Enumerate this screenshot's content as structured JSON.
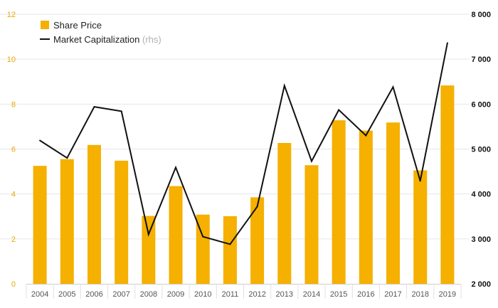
{
  "chart_data": {
    "type": "bar",
    "categories": [
      "2004",
      "2005",
      "2006",
      "2007",
      "2008",
      "2009",
      "2010",
      "2011",
      "2012",
      "2013",
      "2014",
      "2015",
      "2016",
      "2017",
      "2018",
      "2019"
    ],
    "series": [
      {
        "name": "Share Price",
        "type": "bar",
        "axis": "left",
        "values": [
          5.25,
          5.55,
          6.18,
          5.48,
          3.02,
          4.35,
          3.08,
          3.01,
          3.85,
          6.27,
          5.28,
          7.28,
          6.82,
          7.18,
          5.05,
          8.83
        ]
      },
      {
        "name": "Market Capitalization",
        "name_suffix": "(rhs)",
        "type": "line",
        "axis": "right",
        "values": [
          5190,
          4800,
          5940,
          5840,
          3100,
          4590,
          3050,
          2880,
          3720,
          6410,
          4730,
          5870,
          5300,
          6380,
          4290,
          7360
        ]
      }
    ],
    "ylim_left": [
      0,
      12
    ],
    "yticks_left": [
      0,
      2,
      4,
      6,
      8,
      10,
      12
    ],
    "yticks_left_labels": [
      "0",
      "2",
      "4",
      "6",
      "8",
      "10",
      "12"
    ],
    "ylim_right": [
      2000,
      8000
    ],
    "yticks_right": [
      2000,
      3000,
      4000,
      5000,
      6000,
      7000,
      8000
    ],
    "yticks_right_labels": [
      "2 000",
      "3 000",
      "4 000",
      "5 000",
      "6 000",
      "7 000",
      "8 000"
    ],
    "legend": [
      {
        "label": "Share Price",
        "suffix": ""
      },
      {
        "label": "Market Capitalization",
        "suffix": "(rhs)"
      }
    ],
    "legend_position": "top-left",
    "grid": true,
    "title": "",
    "xlabel": "",
    "ylabel": ""
  },
  "colors": {
    "bar": "#f5b000",
    "line": "#111111",
    "grid": "#e6e6e6",
    "left_axis_text": "#e8a800",
    "right_axis_text": "#111111"
  }
}
